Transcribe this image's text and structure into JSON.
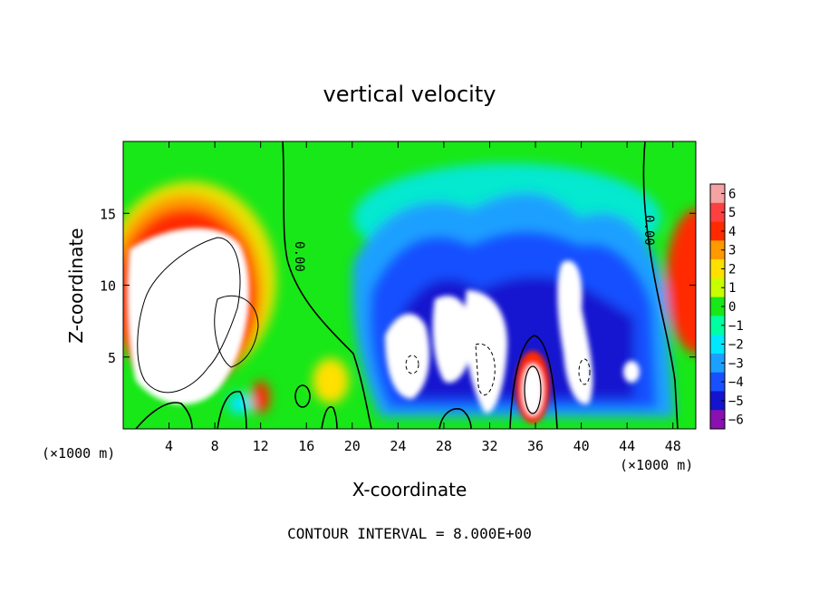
{
  "chart_data": {
    "type": "heatmap",
    "title": "vertical velocity",
    "xlabel": "X-coordinate",
    "ylabel": "Z-coordinate",
    "x_unit_note": "(×1000 m)",
    "x_unit_note_right": "(×1000 m)",
    "xlim": [
      0,
      50
    ],
    "ylim": [
      0,
      20
    ],
    "x_ticks": [
      4,
      8,
      12,
      16,
      20,
      24,
      28,
      32,
      36,
      40,
      44,
      48
    ],
    "x_tick_labels": [
      "4",
      "8",
      "12",
      "16",
      "20",
      "24",
      "28",
      "32",
      "36",
      "40",
      "44",
      "48"
    ],
    "y_ticks": [
      5,
      10,
      15
    ],
    "y_tick_labels": [
      "5",
      "10",
      "15"
    ],
    "colorbar": {
      "levels": [
        6,
        5,
        4,
        3,
        2,
        1,
        0,
        -1,
        -2,
        -3,
        -4,
        -5,
        -6
      ],
      "labels": [
        "6",
        "5",
        "4",
        "3",
        "2",
        "1",
        "0",
        "−1",
        "−2",
        "−3",
        "−4",
        "−5",
        "−6"
      ],
      "colors": [
        "#f4a2a2",
        "#ff4040",
        "#ff2a00",
        "#ff9a00",
        "#ffe000",
        "#c8ff00",
        "#18e818",
        "#00ffa0",
        "#00e8ff",
        "#1ca0ff",
        "#1850ff",
        "#1414d0",
        "#8a10b0"
      ]
    },
    "contour_labels": [
      "0.00",
      "0.00"
    ],
    "contour_interval_text": "CONTOUR INTERVAL = 8.000E+00"
  }
}
